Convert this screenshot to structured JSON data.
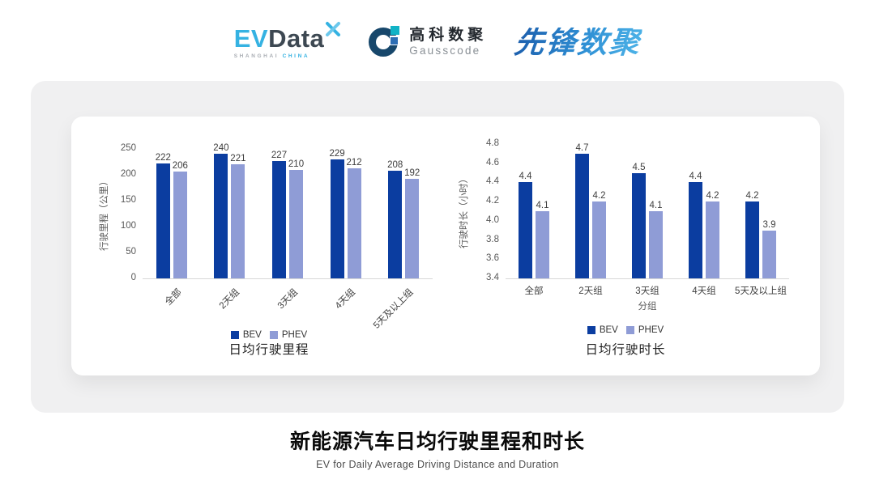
{
  "header": {
    "evdata": {
      "ev": "EV",
      "data": "Data",
      "sub_left": "SHANGHAI",
      "sub_right": "CHINA"
    },
    "gausscode": {
      "cn": "高科数聚",
      "en": "Gausscode"
    },
    "pioneer": {
      "text": "先锋数聚"
    }
  },
  "colors": {
    "bev": "#0B3DA0",
    "phev": "#8F9CD6",
    "axis_line": "#d8d8d8",
    "panel_bg": "#f0f0f1",
    "evdata_cyan": "#35b2e2",
    "evdata_dark": "#3d4852",
    "gauss_navy": "#17476b",
    "gauss_teal": "#11b3c6",
    "gauss_blue": "#2d6eb4",
    "pioneer_blue": "#2b7fc6"
  },
  "chart_data": [
    {
      "type": "bar",
      "title": "日均行驶里程",
      "ylabel": "行驶里程（公里）",
      "xlabel": "",
      "categories": [
        "全部",
        "2天组",
        "3天组",
        "4天组",
        "5天及以上组"
      ],
      "series": [
        {
          "name": "BEV",
          "values": [
            222,
            240,
            227,
            229,
            208
          ]
        },
        {
          "name": "PHEV",
          "values": [
            206,
            221,
            210,
            212,
            192
          ]
        }
      ],
      "ylim": [
        0,
        250
      ],
      "ytick_labels": [
        "0",
        "50",
        "100",
        "150",
        "200",
        "250"
      ],
      "grid": false,
      "legend_position": "bottom",
      "x_label_rotation": -45
    },
    {
      "type": "bar",
      "title": "日均行驶时长",
      "ylabel": "行驶时长（小时）",
      "xlabel": "分组",
      "categories": [
        "全部",
        "2天组",
        "3天组",
        "4天组",
        "5天及以上组"
      ],
      "series": [
        {
          "name": "BEV",
          "values": [
            4.4,
            4.7,
            4.5,
            4.4,
            4.2
          ]
        },
        {
          "name": "PHEV",
          "values": [
            4.1,
            4.2,
            4.1,
            4.2,
            3.9
          ]
        }
      ],
      "ylim": [
        3.4,
        4.8
      ],
      "ytick_labels": [
        "3.4",
        "3.6",
        "3.8",
        "4.0",
        "4.2",
        "4.4",
        "4.6",
        "4.8"
      ],
      "grid": false,
      "legend_position": "bottom",
      "x_label_rotation": 0
    }
  ],
  "footer": {
    "title": "新能源汽车日均行驶里程和时长",
    "subtitle": "EV for Daily Average Driving Distance and Duration"
  }
}
